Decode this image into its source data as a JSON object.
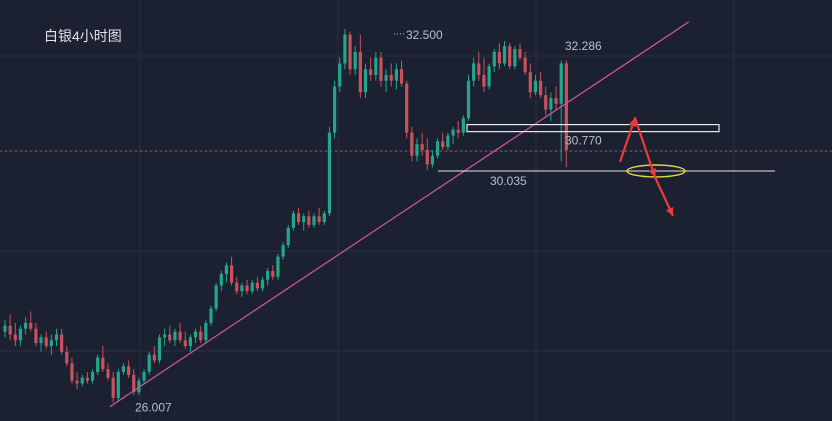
{
  "chart_data": {
    "type": "candlestick",
    "title": "白银4小时图",
    "ylim": [
      25.7,
      33.0
    ],
    "colors": {
      "background": "#1b2130",
      "grid": "#28303f",
      "up": "#23a58e",
      "down": "#c9525f",
      "trendline": "#d9569c",
      "box": "#e8e8e8",
      "support": "#e8e8e8",
      "arrow": "#f03a3a",
      "ellipse": "#e1d83a",
      "price_line": "#b5525e"
    },
    "annotations": {
      "high_left": "32.500",
      "high_right": "32.286",
      "low": "26.007",
      "resistance": "30.770",
      "support": "30.035"
    },
    "levels": {
      "resistance": 30.77,
      "support": 30.035,
      "current_price": 30.38
    },
    "trendline": [
      [
        0,
        25.95
      ],
      [
        125,
        32.62
      ]
    ],
    "candles": [
      [
        27.25,
        27.45,
        27.15,
        27.35
      ],
      [
        27.35,
        27.55,
        27.1,
        27.2
      ],
      [
        27.2,
        27.4,
        27.0,
        27.1
      ],
      [
        27.1,
        27.35,
        27.0,
        27.3
      ],
      [
        27.3,
        27.5,
        27.2,
        27.4
      ],
      [
        27.4,
        27.6,
        27.25,
        27.3
      ],
      [
        27.3,
        27.4,
        27.0,
        27.05
      ],
      [
        27.05,
        27.2,
        26.9,
        27.15
      ],
      [
        27.15,
        27.25,
        26.95,
        27.0
      ],
      [
        27.0,
        27.2,
        26.85,
        27.1
      ],
      [
        27.1,
        27.3,
        27.0,
        27.2
      ],
      [
        27.2,
        27.3,
        26.85,
        26.9
      ],
      [
        26.9,
        27.0,
        26.65,
        26.7
      ],
      [
        26.7,
        26.8,
        26.35,
        26.4
      ],
      [
        26.4,
        26.55,
        26.25,
        26.35
      ],
      [
        26.35,
        26.5,
        26.3,
        26.45
      ],
      [
        26.45,
        26.55,
        26.35,
        26.4
      ],
      [
        26.4,
        26.6,
        26.35,
        26.55
      ],
      [
        26.55,
        26.85,
        26.5,
        26.8
      ],
      [
        26.8,
        27.0,
        26.55,
        26.6
      ],
      [
        26.6,
        26.7,
        26.4,
        26.45
      ],
      [
        26.45,
        26.55,
        26.02,
        26.1
      ],
      [
        26.1,
        26.6,
        26.05,
        26.55
      ],
      [
        26.55,
        26.7,
        26.5,
        26.65
      ],
      [
        26.65,
        26.75,
        26.45,
        26.5
      ],
      [
        26.5,
        26.6,
        26.15,
        26.2
      ],
      [
        26.2,
        26.45,
        26.15,
        26.4
      ],
      [
        26.4,
        26.6,
        26.35,
        26.55
      ],
      [
        26.55,
        26.9,
        26.5,
        26.85
      ],
      [
        26.85,
        27.0,
        26.7,
        26.75
      ],
      [
        26.75,
        27.2,
        26.7,
        27.15
      ],
      [
        27.15,
        27.3,
        27.0,
        27.2
      ],
      [
        27.2,
        27.35,
        27.05,
        27.1
      ],
      [
        27.1,
        27.3,
        27.0,
        27.25
      ],
      [
        27.25,
        27.4,
        27.05,
        27.1
      ],
      [
        27.1,
        27.25,
        26.95,
        27.0
      ],
      [
        27.0,
        27.2,
        26.9,
        27.15
      ],
      [
        27.15,
        27.3,
        27.05,
        27.25
      ],
      [
        27.25,
        27.35,
        27.05,
        27.1
      ],
      [
        27.1,
        27.45,
        27.05,
        27.4
      ],
      [
        27.4,
        27.7,
        27.35,
        27.65
      ],
      [
        27.65,
        28.1,
        27.6,
        28.05
      ],
      [
        28.05,
        28.3,
        27.95,
        28.25
      ],
      [
        28.25,
        28.45,
        28.1,
        28.4
      ],
      [
        28.4,
        28.55,
        28.05,
        28.1
      ],
      [
        28.1,
        28.2,
        27.9,
        27.95
      ],
      [
        27.95,
        28.1,
        27.85,
        28.05
      ],
      [
        28.05,
        28.15,
        27.9,
        27.95
      ],
      [
        27.95,
        28.15,
        27.9,
        28.1
      ],
      [
        28.1,
        28.2,
        27.95,
        28.0
      ],
      [
        28.0,
        28.2,
        27.95,
        28.15
      ],
      [
        28.15,
        28.35,
        28.05,
        28.3
      ],
      [
        28.3,
        28.4,
        28.15,
        28.2
      ],
      [
        28.2,
        28.6,
        28.15,
        28.55
      ],
      [
        28.55,
        28.8,
        28.5,
        28.75
      ],
      [
        28.75,
        29.1,
        28.7,
        29.05
      ],
      [
        29.05,
        29.35,
        29.0,
        29.3
      ],
      [
        29.3,
        29.4,
        29.1,
        29.15
      ],
      [
        29.15,
        29.3,
        29.0,
        29.25
      ],
      [
        29.25,
        29.35,
        29.05,
        29.1
      ],
      [
        29.1,
        29.3,
        29.05,
        29.25
      ],
      [
        29.25,
        29.4,
        29.1,
        29.15
      ],
      [
        29.15,
        29.35,
        29.1,
        29.3
      ],
      [
        29.3,
        30.8,
        29.25,
        30.7
      ],
      [
        30.7,
        31.6,
        30.6,
        31.5
      ],
      [
        31.5,
        32.0,
        31.4,
        31.9
      ],
      [
        31.9,
        32.5,
        31.8,
        32.4
      ],
      [
        32.4,
        32.45,
        31.7,
        31.8
      ],
      [
        31.8,
        32.2,
        31.7,
        32.1
      ],
      [
        32.1,
        32.4,
        31.3,
        31.4
      ],
      [
        31.4,
        31.9,
        31.3,
        31.8
      ],
      [
        31.8,
        32.0,
        31.6,
        31.7
      ],
      [
        31.7,
        32.1,
        31.6,
        32.0
      ],
      [
        32.0,
        32.1,
        31.5,
        31.6
      ],
      [
        31.6,
        31.8,
        31.4,
        31.7
      ],
      [
        31.7,
        31.9,
        31.5,
        31.6
      ],
      [
        31.6,
        31.9,
        31.45,
        31.8
      ],
      [
        31.8,
        31.95,
        31.5,
        31.55
      ],
      [
        31.55,
        31.6,
        30.6,
        30.7
      ],
      [
        30.7,
        30.8,
        30.2,
        30.3
      ],
      [
        30.3,
        30.6,
        30.2,
        30.5
      ],
      [
        30.5,
        30.7,
        30.3,
        30.4
      ],
      [
        30.4,
        30.6,
        30.05,
        30.15
      ],
      [
        30.15,
        30.4,
        30.1,
        30.3
      ],
      [
        30.3,
        30.6,
        30.25,
        30.55
      ],
      [
        30.55,
        30.7,
        30.4,
        30.45
      ],
      [
        30.45,
        30.7,
        30.4,
        30.65
      ],
      [
        30.65,
        30.8,
        30.5,
        30.75
      ],
      [
        30.75,
        30.9,
        30.6,
        30.7
      ],
      [
        30.7,
        31.0,
        30.65,
        30.95
      ],
      [
        30.95,
        31.7,
        30.9,
        31.6
      ],
      [
        31.6,
        32.0,
        31.5,
        31.9
      ],
      [
        31.9,
        32.1,
        31.6,
        31.7
      ],
      [
        31.7,
        32.0,
        31.4,
        31.5
      ],
      [
        31.5,
        31.9,
        31.45,
        31.85
      ],
      [
        31.85,
        32.15,
        31.75,
        32.1
      ],
      [
        32.1,
        32.25,
        31.8,
        31.9
      ],
      [
        31.9,
        32.29,
        31.85,
        32.2
      ],
      [
        32.2,
        32.25,
        31.8,
        31.85
      ],
      [
        31.85,
        32.2,
        31.8,
        32.15
      ],
      [
        32.15,
        32.25,
        31.95,
        32.0
      ],
      [
        32.0,
        32.1,
        31.7,
        31.75
      ],
      [
        31.75,
        31.9,
        31.3,
        31.4
      ],
      [
        31.4,
        31.7,
        31.35,
        31.6
      ],
      [
        31.6,
        31.75,
        31.3,
        31.35
      ],
      [
        31.35,
        31.5,
        31.0,
        31.1
      ],
      [
        31.1,
        31.4,
        30.9,
        31.3
      ],
      [
        31.3,
        31.5,
        31.1,
        31.2
      ],
      [
        31.2,
        31.95,
        30.2,
        31.9
      ],
      [
        31.9,
        31.95,
        30.1,
        30.4
      ]
    ]
  }
}
